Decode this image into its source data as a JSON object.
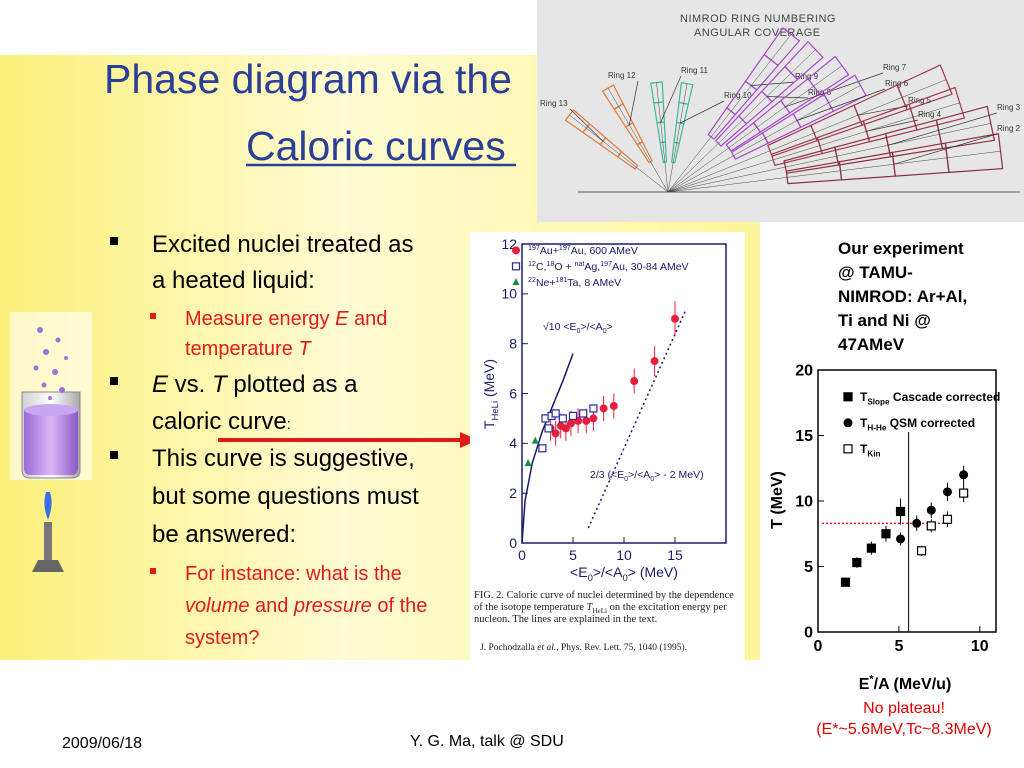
{
  "slide": {
    "title": [
      "Phase diagram via the",
      "Caloric curves"
    ],
    "bullets": [
      {
        "level": 1,
        "lines": [
          [
            {
              "t": "Excited nuclei treated as"
            }
          ],
          [
            {
              "t": "a heated liquid:"
            }
          ]
        ]
      },
      {
        "level": 2,
        "lines": [
          [
            {
              "t": "Measure energy "
            },
            {
              "t": "E",
              "i": true
            },
            {
              "t": " and"
            }
          ],
          [
            {
              "t": "temperature "
            },
            {
              "t": "T",
              "i": true
            }
          ]
        ]
      },
      {
        "level": 1,
        "lines": [
          [
            {
              "t": "E",
              "i": true
            },
            {
              "t": " vs. "
            },
            {
              "t": "T",
              "i": true
            },
            {
              "t": " plotted as a"
            }
          ],
          [
            {
              "t": "caloric curve"
            },
            {
              "t": ":",
              "small": true
            }
          ]
        ]
      },
      {
        "level": 1,
        "lines": [
          [
            {
              "t": "This curve is suggestive,"
            }
          ],
          [
            {
              "t": "but some questions must"
            }
          ],
          [
            {
              "t": "be answered:"
            }
          ]
        ]
      },
      {
        "level": 2,
        "lines": [
          [
            {
              "t": "For instance: what is the"
            }
          ],
          [
            {
              "t": "volume",
              "i": true
            },
            {
              "t": " and "
            },
            {
              "t": "pressure",
              "i": true
            },
            {
              "t": " of the"
            }
          ],
          [
            {
              "t": "system?"
            }
          ]
        ]
      }
    ],
    "experiment_note": [
      "Our experiment",
      "@ TAMU-",
      "NIMROD: Ar+Al,",
      "Ti and Ni @",
      "47AMeV"
    ],
    "conclusion": [
      "No plateau!",
      "(E*~5.6MeV,Tc~8.3MeV)"
    ],
    "footer": {
      "date": "2009/06/18",
      "author": "Y. G. Ma, talk @ SDU"
    }
  },
  "nimrod": {
    "title": [
      "NIMROD  RING  NUMBERING",
      "ANGULAR  COVERAGE"
    ],
    "rings": [
      "Ring 13",
      "Ring 12",
      "Ring 11",
      "Ring 10",
      "Ring 9",
      "Ring 8",
      "Ring 7",
      "Ring 6",
      "Ring 5",
      "Ring 4",
      "Ring 3",
      "Ring 2"
    ]
  },
  "chart_data": [
    {
      "type": "scatter",
      "xlim": [
        0,
        20
      ],
      "ylim": [
        0,
        12
      ],
      "xticks": [
        0,
        5,
        10,
        15
      ],
      "yticks": [
        0,
        2,
        4,
        6,
        8,
        10,
        12
      ],
      "xlabel": [
        {
          "t": "<E"
        },
        {
          "t": "0",
          "sub": true
        },
        {
          "t": ">/<A"
        },
        {
          "t": "0",
          "sub": true
        },
        {
          "t": "> (MeV)"
        }
      ],
      "ylabel": [
        {
          "t": "T"
        },
        {
          "t": "HeLi",
          "sub": true
        },
        {
          "t": " (MeV)"
        }
      ],
      "series": [
        {
          "name": [
            {
              "t": "197",
              "sup": true
            },
            {
              "t": "Au+"
            },
            {
              "t": "197",
              "sup": true
            },
            {
              "t": "Au, 600 AMeV"
            }
          ],
          "color": "#e41e3c",
          "marker": "circle-filled",
          "x": [
            2.8,
            3.3,
            3.8,
            4.3,
            4.8,
            5.5,
            6.3,
            7.0,
            8.0,
            9.0,
            11.0,
            13.0,
            15.0
          ],
          "values": [
            4.6,
            4.4,
            4.7,
            4.6,
            4.8,
            4.9,
            4.9,
            5.0,
            5.4,
            5.5,
            6.5,
            7.3,
            9.0
          ],
          "errors": [
            0.5,
            0.5,
            0.5,
            0.5,
            0.5,
            0.5,
            0.5,
            0.5,
            0.5,
            0.5,
            0.5,
            0.6,
            0.7
          ]
        },
        {
          "name": [
            {
              "t": "12",
              "sup": true
            },
            {
              "t": "C,"
            },
            {
              "t": "18",
              "sup": true
            },
            {
              "t": "O + "
            },
            {
              "t": "nat",
              "sup": true
            },
            {
              "t": "Ag,"
            },
            {
              "t": "197",
              "sup": true
            },
            {
              "t": "Au, 30-84 AMeV"
            }
          ],
          "color": "#2a2a9a",
          "marker": "square-open",
          "x": [
            2.0,
            2.3,
            2.6,
            2.9,
            3.3,
            4.0,
            5.0,
            6.0,
            7.0
          ],
          "values": [
            3.8,
            5.0,
            4.6,
            5.1,
            5.2,
            5.0,
            5.1,
            5.2,
            5.4
          ]
        },
        {
          "name": [
            {
              "t": "22",
              "sup": true
            },
            {
              "t": "Ne+"
            },
            {
              "t": "181",
              "sup": true
            },
            {
              "t": "Ta, 8 AMeV"
            }
          ],
          "color": "#1a8a3a",
          "marker": "triangle-filled",
          "x": [
            0.6,
            1.3
          ],
          "values": [
            3.2,
            4.1
          ]
        }
      ],
      "lines": [
        {
          "style": "solid",
          "color": "#1a1a6a",
          "x": [
            0,
            0.3,
            1,
            2,
            3,
            4,
            5
          ],
          "values": [
            0,
            1.7,
            3.2,
            4.5,
            5.5,
            6.5,
            7.6
          ],
          "label": [
            {
              "t": "√10 <E"
            },
            {
              "t": "0",
              "sub": true
            },
            {
              "t": ">/<A"
            },
            {
              "t": "0",
              "sub": true
            },
            {
              "t": ">"
            }
          ]
        },
        {
          "style": "dotted",
          "color": "#1a1a6a",
          "x": [
            6.5,
            16
          ],
          "values": [
            0.6,
            9.3
          ],
          "label": [
            {
              "t": "2/3 (<E"
            },
            {
              "t": "0",
              "sub": true
            },
            {
              "t": ">/<A"
            },
            {
              "t": "0",
              "sub": true
            },
            {
              "t": "> - 2 MeV)"
            }
          ]
        }
      ],
      "caption": [
        [
          {
            "t": "FIG. 2.   Caloric curve of nuclei determined by the dependence"
          }
        ],
        [
          {
            "t": "of the isotope temperature "
          },
          {
            "t": "T",
            "i": true
          },
          {
            "t": "HeLi",
            "sub": true
          },
          {
            "t": " on the excitation energy per"
          }
        ],
        [
          {
            "t": "nucleon. The lines are explained in the text."
          }
        ]
      ],
      "citation": [
        {
          "t": "J. Pochodzalla "
        },
        {
          "t": "et al.",
          "i": true
        },
        {
          "t": ", Phys. Rev. Lett. 75, 1040 (1995)."
        }
      ]
    },
    {
      "type": "scatter",
      "xlim": [
        0,
        11
      ],
      "ylim": [
        0,
        20
      ],
      "xticks": [
        0,
        5,
        10
      ],
      "yticks": [
        0,
        5,
        10,
        15,
        20
      ],
      "xlabel": [
        {
          "t": "E"
        },
        {
          "t": "*",
          "sup": true
        },
        {
          "t": "/A (MeV/u)"
        }
      ],
      "ylabel": [
        {
          "t": "T (MeV)"
        }
      ],
      "reference": {
        "x": 5.6,
        "y": 8.3
      },
      "series": [
        {
          "name": [
            {
              "t": "T"
            },
            {
              "t": "Slope",
              "sub": true
            },
            {
              "t": " Cascade corrected"
            }
          ],
          "color": "#000000",
          "marker": "square-filled",
          "x": [
            1.7,
            2.4,
            3.3,
            4.2,
            5.1
          ],
          "values": [
            3.8,
            5.3,
            6.4,
            7.5,
            9.2
          ],
          "errors": [
            0.3,
            0.4,
            0.5,
            0.6,
            1.0
          ]
        },
        {
          "name": [
            {
              "t": "T"
            },
            {
              "t": "H-He",
              "sub": true
            },
            {
              "t": " QSM corrected"
            }
          ],
          "color": "#000000",
          "marker": "circle-filled",
          "x": [
            5.1,
            6.1,
            7.0,
            8.0,
            9.0
          ],
          "values": [
            7.1,
            8.3,
            9.3,
            10.7,
            12.0
          ],
          "errors": [
            0.5,
            0.6,
            0.6,
            0.7,
            0.7
          ]
        },
        {
          "name": [
            {
              "t": "T"
            },
            {
              "t": "Kin",
              "sub": true
            }
          ],
          "color": "#000000",
          "marker": "square-open",
          "x": [
            6.4,
            7.0,
            8.0,
            9.0
          ],
          "values": [
            6.2,
            8.1,
            8.6,
            10.6
          ],
          "errors": [
            0.4,
            0.5,
            0.6,
            0.7
          ]
        }
      ]
    }
  ]
}
